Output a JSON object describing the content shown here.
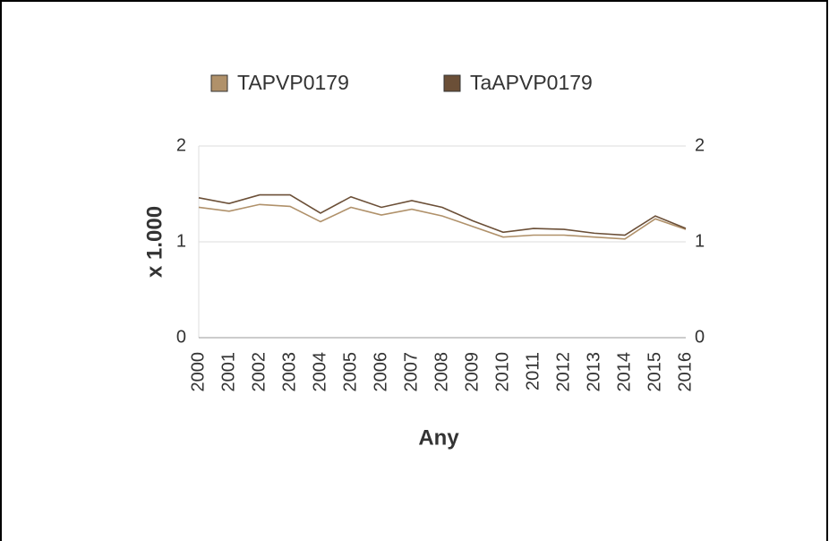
{
  "chart_data": {
    "type": "line",
    "x_label": "Any",
    "y_label": "x 1.000",
    "categories": [
      "2000",
      "2001",
      "2002",
      "2003",
      "2004",
      "2005",
      "2006",
      "2007",
      "2008",
      "2009",
      "2010",
      "2011",
      "2012",
      "2013",
      "2014",
      "2015",
      "2016"
    ],
    "series": [
      {
        "name": "TAPVP0179",
        "color": "#b0916a",
        "values": [
          1.36,
          1.32,
          1.39,
          1.37,
          1.21,
          1.36,
          1.28,
          1.34,
          1.27,
          1.16,
          1.05,
          1.07,
          1.07,
          1.05,
          1.03,
          1.24,
          1.13
        ]
      },
      {
        "name": "TaAPVP0179",
        "color": "#6b4f37",
        "values": [
          1.46,
          1.4,
          1.49,
          1.49,
          1.3,
          1.47,
          1.36,
          1.43,
          1.36,
          1.22,
          1.1,
          1.14,
          1.13,
          1.09,
          1.07,
          1.27,
          1.14
        ]
      }
    ],
    "ylim": [
      0,
      2
    ],
    "yticks": [
      0,
      1,
      2
    ],
    "y2lim": [
      0,
      2
    ],
    "y2ticks": [
      0,
      1,
      2
    ],
    "grid": true
  }
}
